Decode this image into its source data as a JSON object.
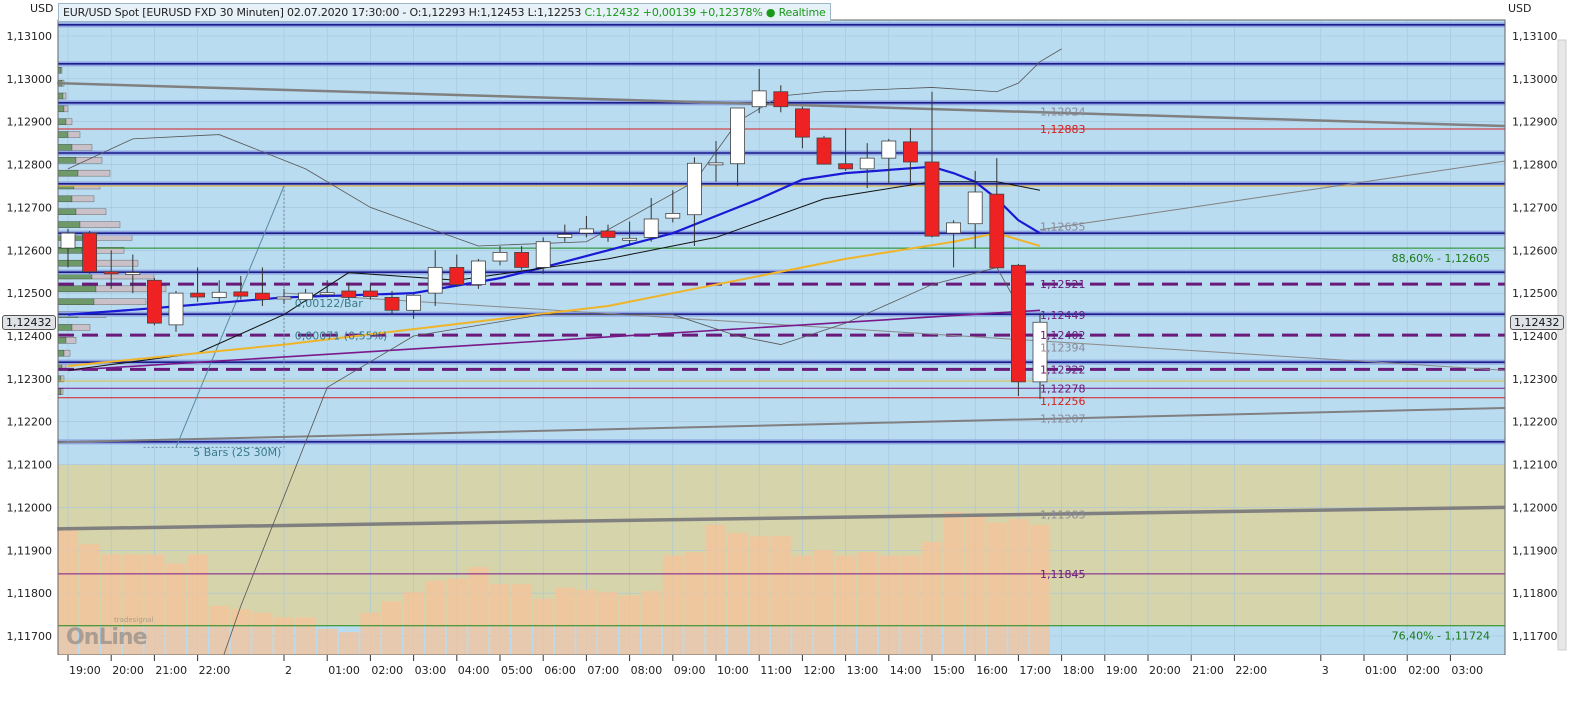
{
  "header": {
    "currency_left": "USD",
    "currency_right": "USD",
    "info": "EUR/USD Spot [EURUSD FXD 30 Minuten] 02.07.2020 17:30:00 - O:1,12293 H:1,12453 L:1,12253",
    "change": "C:1,12432 +0,00139 +0,12378%",
    "realtime": "● Realtime",
    "current_price": "1,12432"
  },
  "logo": {
    "text": "OnLine",
    "small": "tradesignal"
  },
  "chart_data": {
    "type": "candlestick",
    "price_range": [
      1.1165,
      1.1318
    ],
    "price_ticks": [
      "1,13100",
      "1,13000",
      "1,12900",
      "1,12800",
      "1,12700",
      "1,12600",
      "1,12500",
      "1,12400",
      "1,12300",
      "1,12200",
      "1,12100",
      "1,12000",
      "1,11900",
      "1,11800",
      "1,11700"
    ],
    "price_tick_values": [
      1.131,
      1.13,
      1.129,
      1.128,
      1.127,
      1.126,
      1.125,
      1.124,
      1.123,
      1.122,
      1.121,
      1.12,
      1.119,
      1.118,
      1.117
    ],
    "time_labels": [
      {
        "hour": 0,
        "label": "19:00"
      },
      {
        "hour": 1,
        "label": "20:00"
      },
      {
        "hour": 2,
        "label": "21:00"
      },
      {
        "hour": 3,
        "label": "22:00"
      },
      {
        "hour": 5,
        "label": "2"
      },
      {
        "hour": 6,
        "label": "01:00"
      },
      {
        "hour": 7,
        "label": "02:00"
      },
      {
        "hour": 8,
        "label": "03:00"
      },
      {
        "hour": 9,
        "label": "04:00"
      },
      {
        "hour": 10,
        "label": "05:00"
      },
      {
        "hour": 11,
        "label": "06:00"
      },
      {
        "hour": 12,
        "label": "07:00"
      },
      {
        "hour": 13,
        "label": "08:00"
      },
      {
        "hour": 14,
        "label": "09:00"
      },
      {
        "hour": 15,
        "label": "10:00"
      },
      {
        "hour": 16,
        "label": "11:00"
      },
      {
        "hour": 17,
        "label": "12:00"
      },
      {
        "hour": 18,
        "label": "13:00"
      },
      {
        "hour": 19,
        "label": "14:00"
      },
      {
        "hour": 20,
        "label": "15:00"
      },
      {
        "hour": 21,
        "label": "16:00"
      },
      {
        "hour": 22,
        "label": "17:00"
      },
      {
        "hour": 23,
        "label": "18:00"
      },
      {
        "hour": 24,
        "label": "19:00"
      },
      {
        "hour": 25,
        "label": "20:00"
      },
      {
        "hour": 26,
        "label": "21:00"
      },
      {
        "hour": 27,
        "label": "22:00"
      },
      {
        "hour": 29,
        "label": "3"
      },
      {
        "hour": 30,
        "label": "01:00"
      },
      {
        "hour": 31,
        "label": "02:00"
      },
      {
        "hour": 32,
        "label": "03:00"
      }
    ],
    "candles": [
      [
        1.12605,
        1.1265,
        1.1256,
        1.1264
      ],
      [
        1.1264,
        1.12645,
        1.12545,
        1.1255
      ],
      [
        1.1255,
        1.126,
        1.1251,
        1.12545
      ],
      [
        1.12545,
        1.1259,
        1.125,
        1.12548
      ],
      [
        1.1253,
        1.12535,
        1.12425,
        1.1243
      ],
      [
        1.12426,
        1.12505,
        1.1241,
        1.125
      ],
      [
        1.125,
        1.1256,
        1.1248,
        1.12491
      ],
      [
        1.1249,
        1.1253,
        1.1248,
        1.12502
      ],
      [
        1.12503,
        1.1254,
        1.12485,
        1.12493
      ],
      [
        1.125,
        1.1256,
        1.1247,
        1.12485
      ],
      [
        1.1249,
        1.1251,
        1.12475,
        1.12491
      ],
      [
        1.12485,
        1.1251,
        1.1248,
        1.125
      ],
      [
        1.125,
        1.1253,
        1.1249,
        1.12501
      ],
      [
        1.12505,
        1.12525,
        1.12485,
        1.1249
      ],
      [
        1.12505,
        1.1252,
        1.12485,
        1.12492
      ],
      [
        1.1249,
        1.12505,
        1.1245,
        1.1246
      ],
      [
        1.1246,
        1.125,
        1.1244,
        1.12495
      ],
      [
        1.125,
        1.126,
        1.1247,
        1.1256
      ],
      [
        1.1256,
        1.1259,
        1.12515,
        1.1252
      ],
      [
        1.1252,
        1.1258,
        1.1251,
        1.12575
      ],
      [
        1.12575,
        1.1261,
        1.12565,
        1.12595
      ],
      [
        1.12595,
        1.1261,
        1.12555,
        1.1256
      ],
      [
        1.1256,
        1.1263,
        1.12545,
        1.1262
      ],
      [
        1.1263,
        1.1266,
        1.1262,
        1.12637
      ],
      [
        1.1264,
        1.1268,
        1.1263,
        1.1265
      ],
      [
        1.12645,
        1.1266,
        1.1262,
        1.1263
      ],
      [
        1.12627,
        1.12667,
        1.1261,
        1.12628
      ],
      [
        1.1263,
        1.12722,
        1.1262,
        1.12673
      ],
      [
        1.12675,
        1.1274,
        1.12665,
        1.12686
      ],
      [
        1.12683,
        1.12817,
        1.1261,
        1.12803
      ],
      [
        1.12804,
        1.12855,
        1.1276,
        1.12804
      ],
      [
        1.12802,
        1.12932,
        1.1275,
        1.12932
      ],
      [
        1.12935,
        1.13023,
        1.1292,
        1.12972
      ],
      [
        1.1297,
        1.12985,
        1.12922,
        1.12935
      ],
      [
        1.1293,
        1.12935,
        1.12838,
        1.12864
      ],
      [
        1.12862,
        1.12867,
        1.128,
        1.12801
      ],
      [
        1.12802,
        1.12885,
        1.12785,
        1.1279
      ],
      [
        1.1279,
        1.1285,
        1.12745,
        1.12815
      ],
      [
        1.12815,
        1.1286,
        1.12755,
        1.12855
      ],
      [
        1.12853,
        1.12885,
        1.12757,
        1.12806
      ],
      [
        1.12806,
        1.1297,
        1.1263,
        1.12633
      ],
      [
        1.1264,
        1.1267,
        1.1256,
        1.12664
      ],
      [
        1.12662,
        1.12785,
        1.12605,
        1.12736
      ],
      [
        1.12731,
        1.12815,
        1.12565,
        1.12559
      ],
      [
        1.12565,
        1.12568,
        1.1226,
        1.12293
      ],
      [
        1.12293,
        1.12453,
        1.12253,
        1.12432
      ]
    ],
    "volume": [
      110,
      97,
      88,
      88,
      88,
      80,
      88,
      43,
      40,
      37,
      33,
      33,
      23,
      20,
      37,
      47,
      55,
      65,
      67,
      77,
      62,
      62,
      49,
      59,
      57,
      55,
      52,
      56,
      87,
      90,
      114,
      107,
      104,
      104,
      87,
      92,
      87,
      90,
      87,
      87,
      99,
      125,
      123,
      116,
      119,
      114
    ],
    "moving_averages": [
      {
        "color": "#1a1ad6",
        "width": 2.2,
        "points": [
          [
            0,
            1.1245
          ],
          [
            4,
            1.12465
          ],
          [
            10,
            1.1249
          ],
          [
            16,
            1.125
          ],
          [
            20,
            1.12535
          ],
          [
            22,
            1.1256
          ],
          [
            25,
            1.126
          ],
          [
            28,
            1.1264
          ],
          [
            30,
            1.1268
          ],
          [
            32,
            1.1272
          ],
          [
            34,
            1.12765
          ],
          [
            36,
            1.1278
          ],
          [
            40,
            1.12795
          ],
          [
            41,
            1.1278
          ],
          [
            42,
            1.1276
          ],
          [
            43,
            1.1272
          ],
          [
            44,
            1.1267
          ],
          [
            45,
            1.1264
          ]
        ]
      },
      {
        "color": "#111111",
        "width": 1,
        "points": [
          [
            0,
            1.1232
          ],
          [
            6,
            1.1236
          ],
          [
            10,
            1.1245
          ],
          [
            13,
            1.12548
          ],
          [
            18,
            1.1253
          ],
          [
            25,
            1.1258
          ],
          [
            30,
            1.1263
          ],
          [
            35,
            1.1272
          ],
          [
            40,
            1.1276
          ],
          [
            43,
            1.1276
          ],
          [
            45,
            1.1274
          ]
        ]
      },
      {
        "color": "#f0b429",
        "width": 2,
        "points": [
          [
            0,
            1.1233
          ],
          [
            10,
            1.1238
          ],
          [
            20,
            1.1244
          ],
          [
            25,
            1.1247
          ],
          [
            30,
            1.1252
          ],
          [
            36,
            1.1258
          ],
          [
            41,
            1.1262
          ],
          [
            43,
            1.1264
          ],
          [
            45,
            1.1261
          ]
        ]
      },
      {
        "color": "#555555",
        "width": 0.8,
        "points": [
          [
            0,
            1.1279
          ],
          [
            3,
            1.1286
          ],
          [
            7,
            1.1287
          ],
          [
            11,
            1.1279
          ],
          [
            14,
            1.127
          ],
          [
            19,
            1.1261
          ],
          [
            24,
            1.1262
          ],
          [
            29,
            1.1276
          ],
          [
            31,
            1.129
          ],
          [
            33,
            1.1296
          ],
          [
            35,
            1.1297
          ],
          [
            40,
            1.1298
          ],
          [
            43,
            1.1297
          ],
          [
            44,
            1.1299
          ],
          [
            45,
            1.1304
          ],
          [
            46,
            1.1307
          ]
        ]
      },
      {
        "color": "#555555",
        "width": 0.8,
        "points": [
          [
            4,
            1.1119
          ],
          [
            8,
            1.1177
          ],
          [
            12,
            1.1228
          ],
          [
            16,
            1.124
          ],
          [
            22,
            1.1245
          ],
          [
            28,
            1.1245
          ],
          [
            31,
            1.124
          ],
          [
            33,
            1.1238
          ],
          [
            36,
            1.1243
          ],
          [
            40,
            1.1252
          ],
          [
            43,
            1.1256
          ],
          [
            44,
            1.1247
          ]
        ]
      }
    ],
    "horizontal_lines": [
      {
        "price": 1.13126,
        "color": "#1c1c8c",
        "style": "band"
      },
      {
        "price": 1.13035,
        "color": "#1c1c8c",
        "style": "band"
      },
      {
        "price": 1.12944,
        "color": "#1c1c8c",
        "style": "band"
      },
      {
        "price": 1.12827,
        "color": "#1c1c8c",
        "style": "band"
      },
      {
        "price": 1.12755,
        "color": "#1c1c8c",
        "style": "band"
      },
      {
        "price": 1.1264,
        "color": "#1c1c8c",
        "style": "band"
      },
      {
        "price": 1.12549,
        "color": "#1c1c8c",
        "style": "band"
      },
      {
        "price": 1.12451,
        "color": "#1c1c8c",
        "style": "band"
      },
      {
        "price": 1.12339,
        "color": "#1c1c8c",
        "style": "band"
      },
      {
        "price": 1.12153,
        "color": "#1c1c8c",
        "style": "band"
      },
      {
        "price": 1.12883,
        "color": "#d42020",
        "style": "solid"
      },
      {
        "price": 1.12256,
        "color": "#d42020",
        "style": "solid"
      },
      {
        "price": 1.12605,
        "color": "#1a8a1a",
        "style": "solid"
      },
      {
        "price": 1.11724,
        "color": "#1a8a1a",
        "style": "solid"
      },
      {
        "price": 1.12521,
        "color": "#6a1a7a",
        "style": "dashed"
      },
      {
        "price": 1.12402,
        "color": "#6a1a7a",
        "style": "dashed"
      },
      {
        "price": 1.12322,
        "color": "#6a1a7a",
        "style": "dashed"
      },
      {
        "price": 1.12278,
        "color": "#7a1a8a",
        "style": "solid"
      },
      {
        "price": 1.11845,
        "color": "#7a1a8a",
        "style": "solid"
      },
      {
        "price": 1.1275,
        "color": "#f0b429",
        "style": "thin"
      },
      {
        "price": 1.12295,
        "color": "#e0c040",
        "style": "thin"
      }
    ],
    "trend_lines": [
      {
        "from": [
          -0.5,
          1.1299
        ],
        "to": [
          66.5,
          1.1289
        ],
        "color": "#808080",
        "width": 2.5
      },
      {
        "from": [
          -0.5,
          1.1195
        ],
        "to": [
          66.5,
          1.12
        ],
        "color": "#808080",
        "width": 3.5
      },
      {
        "from": [
          -0.5,
          1.12152
        ],
        "to": [
          66.5,
          1.12232
        ],
        "color": "#808080",
        "width": 2
      },
      {
        "from": [
          45,
          1.12648
        ],
        "to": [
          66.5,
          1.12808
        ],
        "color": "#808080",
        "width": 1
      },
      {
        "from": [
          10,
          1.125
        ],
        "to": [
          66.5,
          1.1232
        ],
        "color": "#8a8a8a",
        "width": 1
      },
      {
        "from": [
          5,
          1.1214
        ],
        "to": [
          10,
          1.1275
        ],
        "color": "#5a8aa0",
        "width": 1
      },
      {
        "from": [
          0,
          1.1232
        ],
        "to": [
          45,
          1.1246
        ],
        "color": "#7a1a8a",
        "width": 1.6
      }
    ],
    "price_labels": [
      {
        "price": 1.12924,
        "text": "1,12924",
        "color": "#8a8a9a"
      },
      {
        "price": 1.12883,
        "text": "1,12883",
        "color": "#d42020"
      },
      {
        "price": 1.12655,
        "text": "1,12655",
        "color": "#8a8a9a"
      },
      {
        "price": 1.12521,
        "text": "1,12521",
        "color": "#6a1a7a"
      },
      {
        "price": 1.12449,
        "text": "1,12449",
        "color": "#6a1a7a"
      },
      {
        "price": 1.12394,
        "text": "1,12394",
        "color": "#8a8a9a"
      },
      {
        "price": 1.12402,
        "text": "1,12402",
        "color": "#6a1a7a"
      },
      {
        "price": 1.12322,
        "text": "1,12322",
        "color": "#6a1a7a"
      },
      {
        "price": 1.12278,
        "text": "1,12278",
        "color": "#6a1a7a"
      },
      {
        "price": 1.12256,
        "text": "1,12256",
        "color": "#d42020"
      },
      {
        "price": 1.12207,
        "text": "1,12207",
        "color": "#8a8a9a"
      },
      {
        "price": 1.11983,
        "text": "1,11983",
        "color": "#8a8a9a"
      },
      {
        "price": 1.11845,
        "text": "1,11845",
        "color": "#6a1a7a"
      }
    ],
    "fib_labels": [
      {
        "price": 1.12605,
        "text": "88,60% - 1,12605",
        "color": "#1a7a1a"
      },
      {
        "price": 1.11724,
        "text": "76,40% - 1,11724",
        "color": "#1a7a1a"
      }
    ],
    "annotations": [
      {
        "bar": 10.5,
        "price": 1.12468,
        "text": "0,00122/Bar",
        "color": "#3a7a8a"
      },
      {
        "bar": 10.5,
        "price": 1.12392,
        "text": "0,00071 (0,55%)",
        "color": "#3a7a8a"
      },
      {
        "bar": 5.8,
        "price": 1.1212,
        "text": "5 Bars (2S 30M)",
        "color": "#3a7a8a"
      }
    ],
    "volume_profile": [
      [
        1.1302,
        3,
        1
      ],
      [
        1.1299,
        4,
        2
      ],
      [
        1.1296,
        5,
        3
      ],
      [
        1.1293,
        6,
        4
      ],
      [
        1.129,
        8,
        6
      ],
      [
        1.1287,
        10,
        12
      ],
      [
        1.1284,
        14,
        20
      ],
      [
        1.1281,
        18,
        26
      ],
      [
        1.1278,
        20,
        32
      ],
      [
        1.1275,
        16,
        26
      ],
      [
        1.1272,
        14,
        22
      ],
      [
        1.1269,
        18,
        30
      ],
      [
        1.1266,
        22,
        40
      ],
      [
        1.1263,
        26,
        48
      ],
      [
        1.126,
        24,
        42
      ],
      [
        1.1257,
        30,
        50
      ],
      [
        1.1254,
        34,
        62
      ],
      [
        1.1251,
        38,
        70
      ],
      [
        1.1248,
        36,
        52
      ],
      [
        1.1245,
        20,
        28
      ],
      [
        1.1242,
        14,
        18
      ],
      [
        1.1239,
        8,
        10
      ],
      [
        1.1236,
        6,
        6
      ],
      [
        1.1233,
        4,
        4
      ],
      [
        1.123,
        3,
        3
      ],
      [
        1.1227,
        3,
        2
      ]
    ],
    "zones": [
      {
        "from": 1.1316,
        "to": 1.121,
        "color": "#b9dcf0"
      },
      {
        "from": 1.121,
        "to": 1.11724,
        "color": "#d6d4ab"
      },
      {
        "from": 1.11724,
        "to": 1.1165,
        "color": "#b9dcf0"
      }
    ],
    "colors": {
      "up": "#ffffff",
      "down": "#ee2222",
      "grid": "#a6c6da",
      "volume": "#f5c39a"
    }
  }
}
